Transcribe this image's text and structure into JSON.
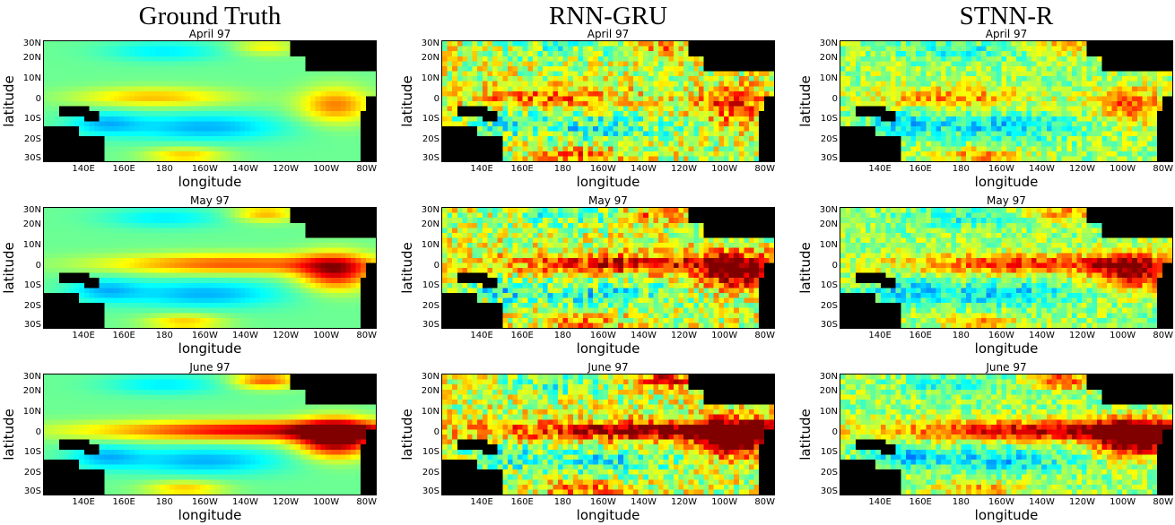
{
  "columns": [
    "Ground Truth",
    "RNN-GRU",
    "STNN-R"
  ],
  "chart_data": {
    "type": "heatmap",
    "colormap": "jet",
    "land_color": "#000000",
    "xlabel": "longitude",
    "ylabel": "latitude",
    "xlim": [
      120,
      285
    ],
    "ylim": [
      -31,
      29
    ],
    "x_ticks": [
      {
        "value": 140,
        "label": "140E"
      },
      {
        "value": 160,
        "label": "160E"
      },
      {
        "value": 180,
        "label": "180"
      },
      {
        "value": 200,
        "label": "160W"
      },
      {
        "value": 220,
        "label": "140W"
      },
      {
        "value": 240,
        "label": "120W"
      },
      {
        "value": 260,
        "label": "100W"
      },
      {
        "value": 280,
        "label": "80W"
      }
    ],
    "y_ticks": [
      {
        "value": 30,
        "label": "30N"
      },
      {
        "value": 20,
        "label": "20N"
      },
      {
        "value": 10,
        "label": "10N"
      },
      {
        "value": 0,
        "label": "0"
      },
      {
        "value": -10,
        "label": "10S"
      },
      {
        "value": -20,
        "label": "20S"
      },
      {
        "value": -30,
        "label": "30S"
      }
    ],
    "rows": [
      {
        "title": "April 97"
      },
      {
        "title": "May 97"
      },
      {
        "title": "June 97"
      }
    ]
  }
}
